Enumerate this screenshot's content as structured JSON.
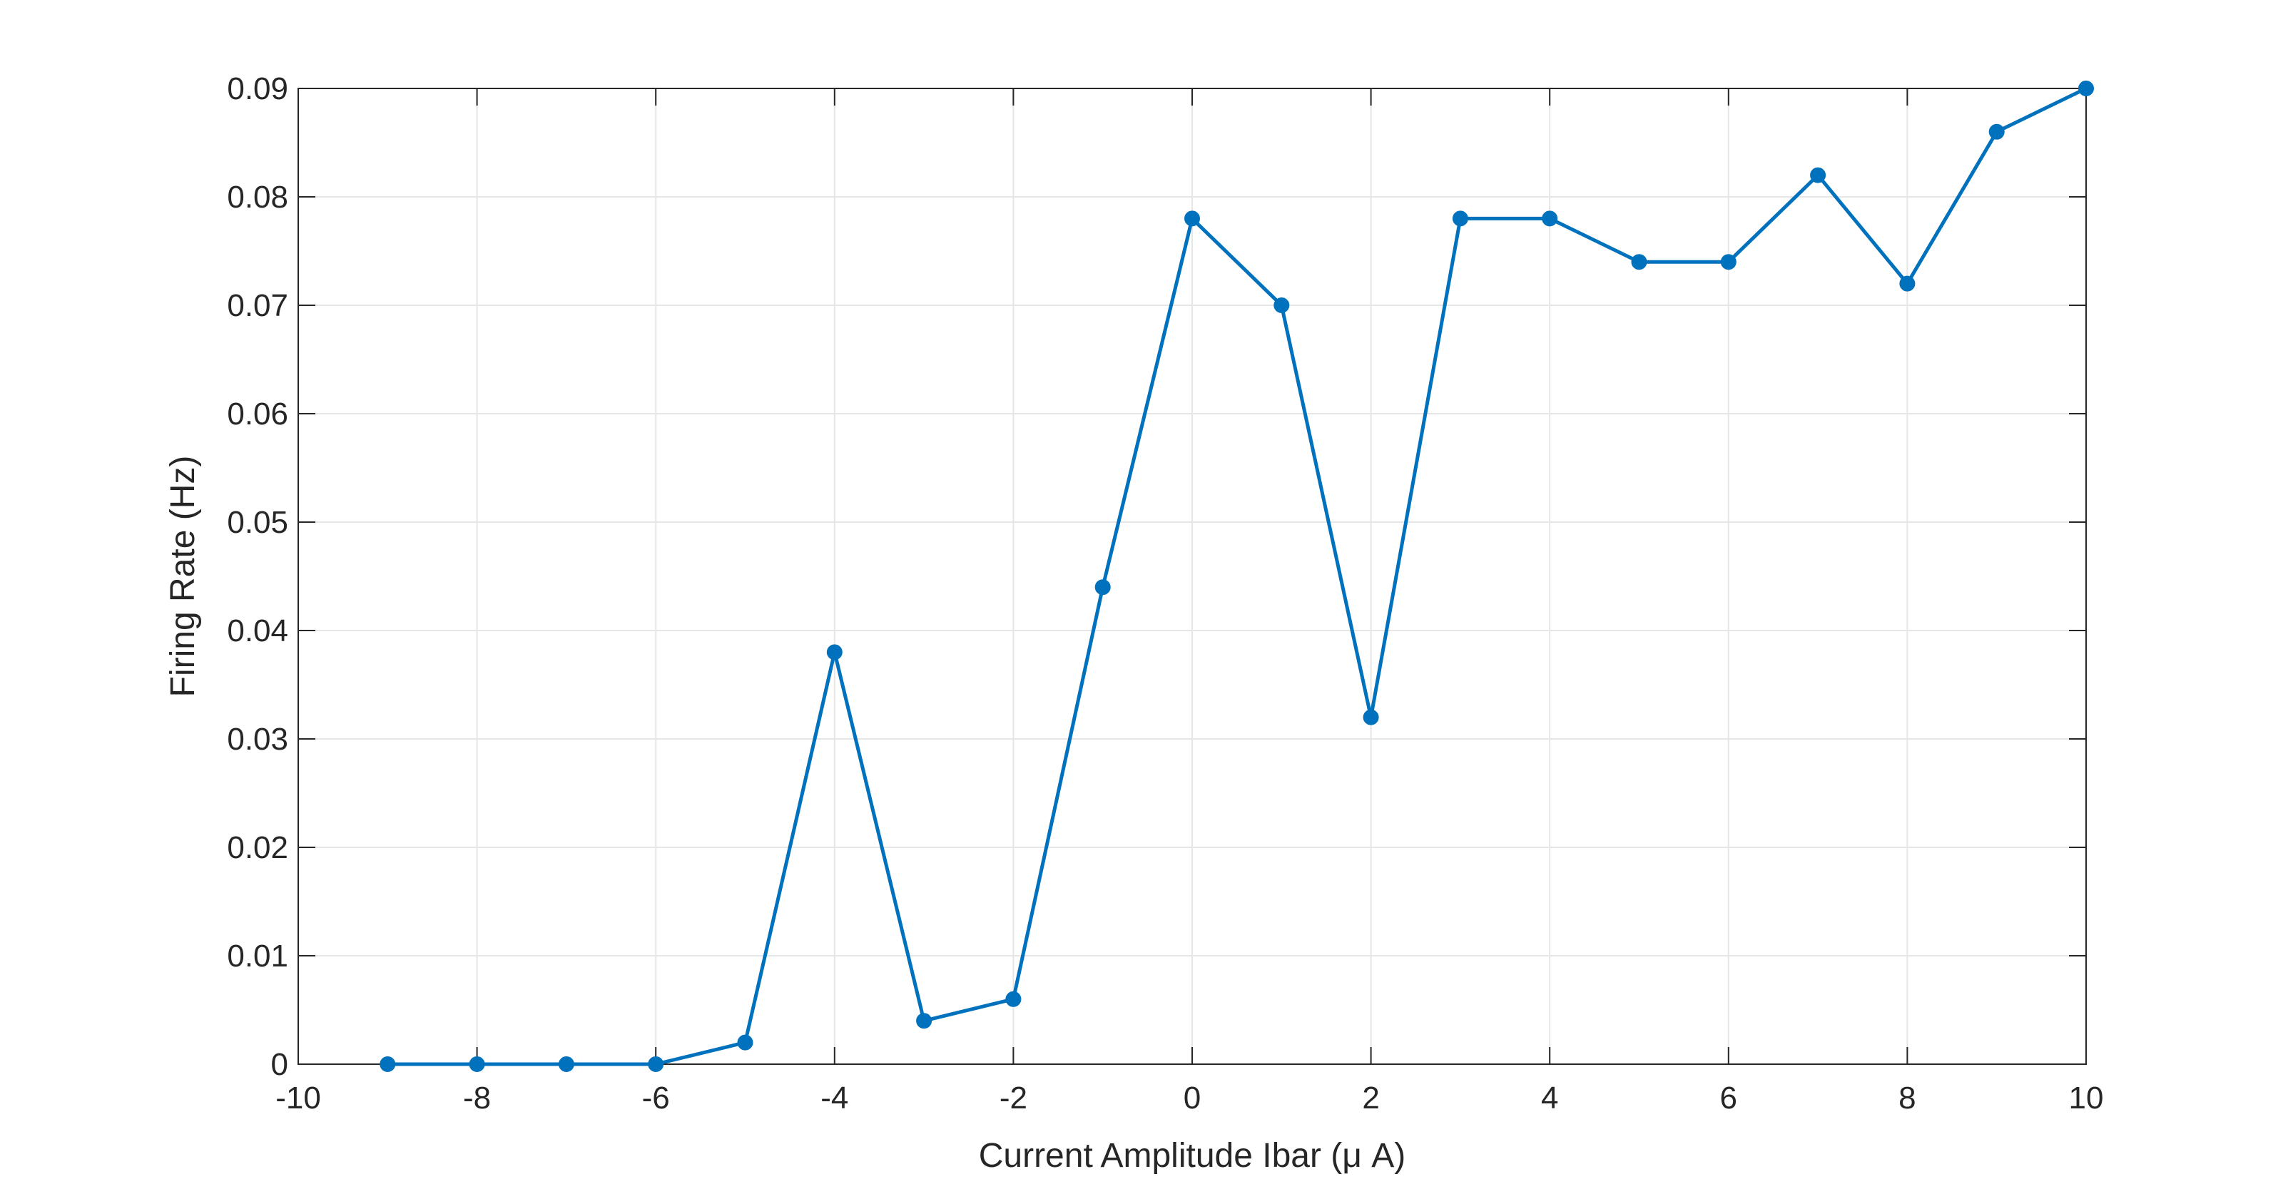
{
  "chart_data": {
    "type": "line",
    "title": "",
    "xlabel": "Current Amplitude Ibar (μ A)",
    "ylabel": "Firing Rate (Hz)",
    "xlim": [
      -10,
      10
    ],
    "ylim": [
      0,
      0.09
    ],
    "xticks": [
      -10,
      -8,
      -6,
      -4,
      -2,
      0,
      2,
      4,
      6,
      8,
      10
    ],
    "yticks": [
      0,
      0.01,
      0.02,
      0.03,
      0.04,
      0.05,
      0.06,
      0.07,
      0.08,
      0.09
    ],
    "grid": true,
    "legend": "none",
    "series": [
      {
        "color": "#0072BD",
        "marker": "circle",
        "x": [
          -9,
          -8,
          -7,
          -6,
          -5,
          -4,
          -3,
          -2,
          -1,
          0,
          1,
          2,
          3,
          4,
          5,
          6,
          7,
          8,
          9,
          10
        ],
        "y": [
          0,
          0,
          0,
          0,
          0.002,
          0.038,
          0.004,
          0.006,
          0.044,
          0.078,
          0.07,
          0.032,
          0.078,
          0.078,
          0.074,
          0.074,
          0.082,
          0.072,
          0.086,
          0.09
        ]
      }
    ]
  }
}
